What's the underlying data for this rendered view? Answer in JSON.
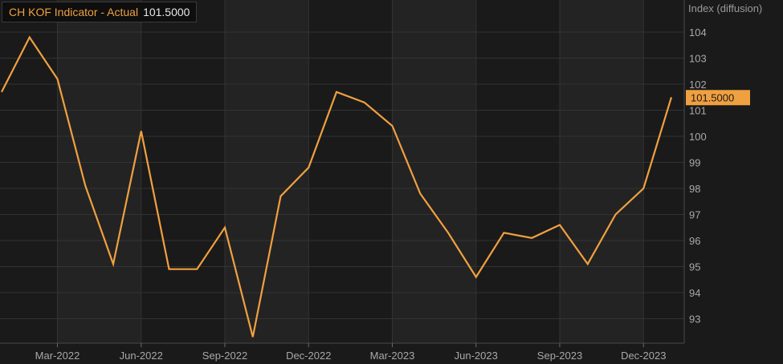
{
  "chart_data": {
    "type": "line",
    "series_label": "CH KOF Indicator - Actual",
    "last_value_label": "101.5000",
    "unit_label": "Index (diffusion)",
    "line_color": "#f0a040",
    "background_colors": [
      "#1a1a1a",
      "#232323"
    ],
    "grid": true,
    "ylim": [
      92.2,
      105
    ],
    "y_ticks": [
      93,
      94,
      95,
      96,
      97,
      98,
      99,
      100,
      101,
      102,
      103,
      104
    ],
    "x_start": "2022-01",
    "x_end": "2024-01",
    "x_ticks": [
      {
        "date": "2022-03",
        "label": "Mar-2022"
      },
      {
        "date": "2022-06",
        "label": "Jun-2022"
      },
      {
        "date": "2022-09",
        "label": "Sep-2022"
      },
      {
        "date": "2022-12",
        "label": "Dec-2022"
      },
      {
        "date": "2023-03",
        "label": "Mar-2023"
      },
      {
        "date": "2023-06",
        "label": "Jun-2023"
      },
      {
        "date": "2023-09",
        "label": "Sep-2023"
      },
      {
        "date": "2023-12",
        "label": "Dec-2023"
      }
    ],
    "points": [
      {
        "date": "2022-01",
        "value": 101.7
      },
      {
        "date": "2022-02",
        "value": 103.8
      },
      {
        "date": "2022-03",
        "value": 102.2
      },
      {
        "date": "2022-04",
        "value": 98.1
      },
      {
        "date": "2022-05",
        "value": 95.1
      },
      {
        "date": "2022-06",
        "value": 100.2
      },
      {
        "date": "2022-07",
        "value": 94.9
      },
      {
        "date": "2022-08",
        "value": 94.9
      },
      {
        "date": "2022-09",
        "value": 96.5
      },
      {
        "date": "2022-10",
        "value": 92.3
      },
      {
        "date": "2022-11",
        "value": 97.7
      },
      {
        "date": "2022-12",
        "value": 98.8
      },
      {
        "date": "2023-01",
        "value": 101.7
      },
      {
        "date": "2023-02",
        "value": 101.3
      },
      {
        "date": "2023-03",
        "value": 100.4
      },
      {
        "date": "2023-04",
        "value": 97.8
      },
      {
        "date": "2023-05",
        "value": 96.3
      },
      {
        "date": "2023-06",
        "value": 94.6
      },
      {
        "date": "2023-07",
        "value": 96.3
      },
      {
        "date": "2023-08",
        "value": 96.1
      },
      {
        "date": "2023-09",
        "value": 96.6
      },
      {
        "date": "2023-10",
        "value": 95.1
      },
      {
        "date": "2023-11",
        "value": 97.0
      },
      {
        "date": "2023-12",
        "value": 98.0
      },
      {
        "date": "2024-01",
        "value": 101.5
      }
    ]
  }
}
